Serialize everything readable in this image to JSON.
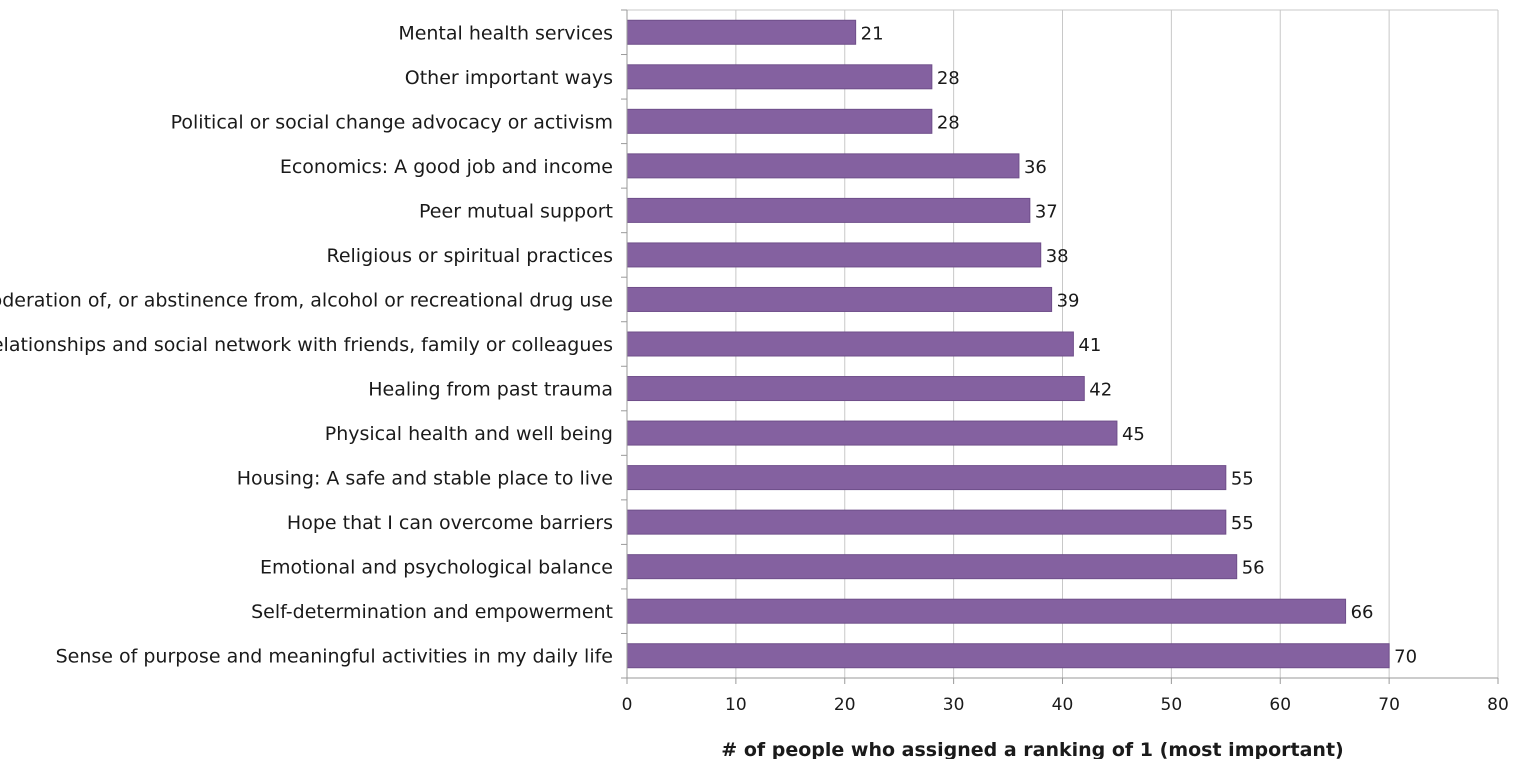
{
  "chart_data": {
    "type": "bar",
    "orientation": "horizontal",
    "title": "",
    "xlabel": "# of people who assigned a ranking of 1 (most important)",
    "ylabel": "",
    "xlim": [
      0,
      80
    ],
    "xticks": [
      0,
      10,
      20,
      30,
      40,
      50,
      60,
      70,
      80
    ],
    "grid": "vertical",
    "bar_color": "#8461a0",
    "data_labels": true,
    "categories": [
      "Mental health services",
      "Other important ways",
      "Political or social change advocacy or activism",
      "Economics: A good job and income",
      "Peer mutual support",
      "Religious or spiritual practices",
      "Moderation of, or abstinence from, alcohol or recreational drug use",
      "Relationships and social network with friends, family or colleagues",
      "Healing from past trauma",
      "Physical health and well being",
      "Housing: A safe and stable place to live",
      "Hope that I can overcome barriers",
      "Emotional and psychological balance",
      "Self-determination and empowerment",
      "Sense of purpose and meaningful activities in my daily life"
    ],
    "values": [
      21,
      28,
      28,
      36,
      37,
      38,
      39,
      41,
      42,
      45,
      55,
      55,
      56,
      66,
      70
    ]
  }
}
